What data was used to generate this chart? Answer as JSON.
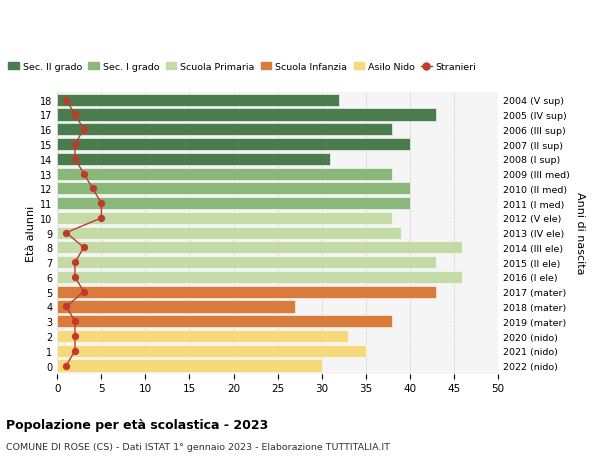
{
  "ages": [
    18,
    17,
    16,
    15,
    14,
    13,
    12,
    11,
    10,
    9,
    8,
    7,
    6,
    5,
    4,
    3,
    2,
    1,
    0
  ],
  "years": [
    "2004 (V sup)",
    "2005 (IV sup)",
    "2006 (III sup)",
    "2007 (II sup)",
    "2008 (I sup)",
    "2009 (III med)",
    "2010 (II med)",
    "2011 (I med)",
    "2012 (V ele)",
    "2013 (IV ele)",
    "2014 (III ele)",
    "2015 (II ele)",
    "2016 (I ele)",
    "2017 (mater)",
    "2018 (mater)",
    "2019 (mater)",
    "2020 (nido)",
    "2021 (nido)",
    "2022 (nido)"
  ],
  "bar_values": [
    32,
    43,
    38,
    40,
    31,
    38,
    40,
    40,
    38,
    39,
    46,
    43,
    46,
    43,
    27,
    38,
    33,
    35,
    30
  ],
  "bar_colors": [
    "#4a7c4e",
    "#4a7c4e",
    "#4a7c4e",
    "#4a7c4e",
    "#4a7c4e",
    "#8ab87a",
    "#8ab87a",
    "#8ab87a",
    "#c5dba7",
    "#c5dba7",
    "#c5dba7",
    "#c5dba7",
    "#c5dba7",
    "#d97b3a",
    "#d97b3a",
    "#d97b3a",
    "#f5d97a",
    "#f5d97a",
    "#f5d97a"
  ],
  "stranieri_values": [
    1,
    2,
    3,
    2,
    2,
    3,
    4,
    5,
    5,
    1,
    3,
    2,
    2,
    3,
    1,
    2,
    2,
    2,
    1
  ],
  "stranieri_color": "#c0392b",
  "legend_labels": [
    "Sec. II grado",
    "Sec. I grado",
    "Scuola Primaria",
    "Scuola Infanzia",
    "Asilo Nido",
    "Stranieri"
  ],
  "legend_colors": [
    "#4a7c4e",
    "#8ab87a",
    "#c5dba7",
    "#d97b3a",
    "#f5d97a",
    "#c0392b"
  ],
  "ylabel_left": "Età alunni",
  "ylabel_right": "Anni di nascita",
  "xlim": [
    0,
    50
  ],
  "xticks": [
    0,
    5,
    10,
    15,
    20,
    25,
    30,
    35,
    40,
    45,
    50
  ],
  "title_main": "Popolazione per età scolastica - 2023",
  "title_sub": "COMUNE DI ROSE (CS) - Dati ISTAT 1° gennaio 2023 - Elaborazione TUTTITALIA.IT",
  "bg_color": "#ffffff",
  "plot_bg_color": "#f5f5f5"
}
